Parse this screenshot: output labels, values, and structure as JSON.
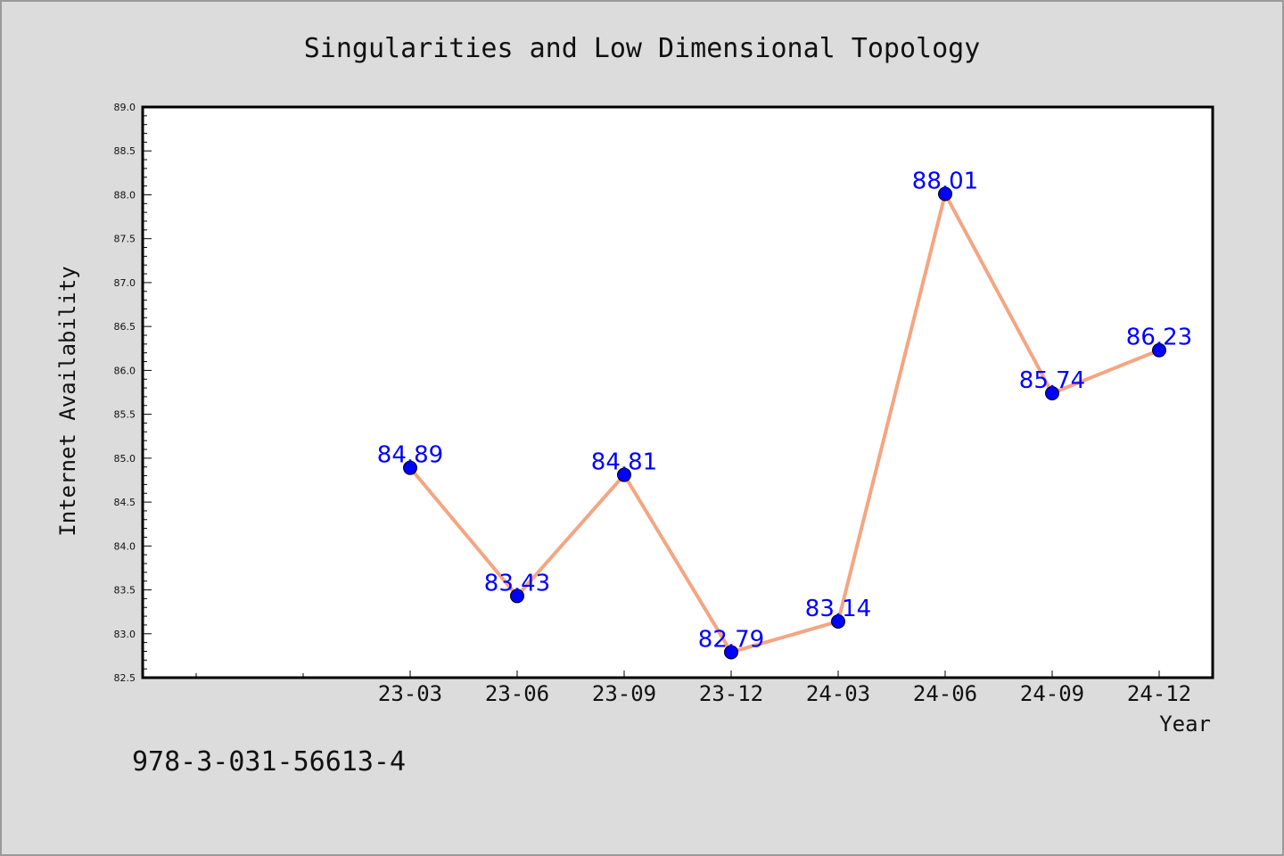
{
  "colors": {
    "background": "#dcdcdc",
    "plot_background": "#ffffff",
    "line": "#f4a582",
    "marker": "#0000ff",
    "label": "#0000ff"
  },
  "footnote": "978-3-031-56613-4",
  "chart_data": {
    "type": "line",
    "title": "Singularities and Low Dimensional Topology",
    "xlabel": "Year",
    "ylabel": "Internet Availability",
    "categories": [
      "23-03",
      "23-06",
      "23-09",
      "23-12",
      "24-03",
      "24-06",
      "24-09",
      "24-12"
    ],
    "series": [
      {
        "values": [
          84.89,
          83.43,
          84.81,
          82.79,
          83.14,
          88.01,
          85.74,
          86.23
        ]
      }
    ],
    "data_labels": [
      "84.89",
      "83.43",
      "84.81",
      "82.79",
      "83.14",
      "88.01",
      "85.74",
      "86.23"
    ],
    "ylim": [
      82.5,
      89.0
    ],
    "yticks": [
      "82.5",
      "83.0",
      "83.5",
      "84.0",
      "84.5",
      "85.0",
      "85.5",
      "86.0",
      "86.5",
      "87.0",
      "87.5",
      "88.0",
      "88.5",
      "89.0"
    ],
    "grid": false,
    "legend": "none"
  }
}
